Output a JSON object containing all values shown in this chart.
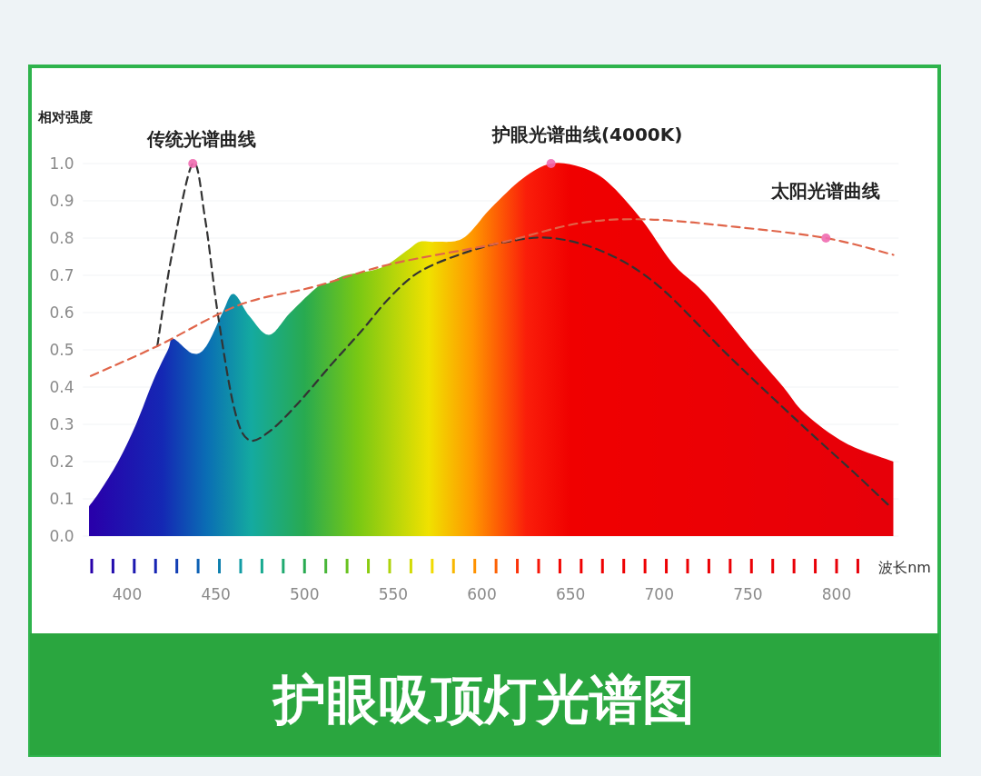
{
  "chart_data": {
    "type": "line",
    "title": "护眼吸顶灯光谱图",
    "ylabel": "相对强度",
    "xlabel": "波长nm",
    "xlim": [
      375,
      835
    ],
    "ylim": [
      0,
      1
    ],
    "xticks": [
      400,
      450,
      500,
      550,
      600,
      650,
      700,
      750,
      800
    ],
    "yticks": [
      {
        "value": 0,
        "label": "0.0"
      },
      {
        "value": 0.1,
        "label": "0.1"
      },
      {
        "value": 0.2,
        "label": "0.2"
      },
      {
        "value": 0.3,
        "label": "0.3"
      },
      {
        "value": 0.4,
        "label": "0.4"
      },
      {
        "value": 0.5,
        "label": "0.5"
      },
      {
        "value": 0.6,
        "label": "0.6"
      },
      {
        "value": 0.7,
        "label": "0.7"
      },
      {
        "value": 0.8,
        "label": "0.8"
      },
      {
        "value": 0.9,
        "label": "0.9"
      },
      {
        "value": 1,
        "label": "1.0"
      }
    ],
    "grid": "y",
    "series": [
      {
        "type": "area",
        "x": [
          378.5,
          384.6,
          394.9,
          405,
          415,
          423,
          426,
          437,
          444.6,
          453.8,
          460,
          469,
          480,
          492,
          507.6,
          514,
          523,
          543,
          558.8,
          565,
          574,
          589.5,
          605,
          623,
          639,
          656,
          671,
          690,
          708,
          726,
          752,
          770,
          782,
          805,
          832
        ],
        "values": [
          0.08,
          0.12,
          0.2,
          0.3,
          0.42,
          0.5,
          0.53,
          0.49,
          0.51,
          0.6,
          0.65,
          0.59,
          0.54,
          0.6,
          0.67,
          0.68,
          0.7,
          0.72,
          0.77,
          0.79,
          0.79,
          0.8,
          0.88,
          0.96,
          1.0,
          0.99,
          0.95,
          0.85,
          0.73,
          0.65,
          0.5,
          0.4,
          0.33,
          0.25,
          0.2
        ]
      },
      {
        "type": "line",
        "color": "#333333",
        "line_style": "dashed",
        "x": [
          417,
          425,
          437,
          444,
          451,
          460,
          468,
          480,
          497,
          515,
          532,
          548,
          565,
          590,
          614,
          640,
          670,
          700,
          740,
          780,
          810,
          830
        ],
        "values": [
          0.51,
          0.75,
          1.0,
          0.85,
          0.6,
          0.35,
          0.26,
          0.28,
          0.36,
          0.46,
          0.55,
          0.64,
          0.71,
          0.76,
          0.79,
          0.8,
          0.76,
          0.67,
          0.48,
          0.3,
          0.17,
          0.08
        ]
      },
      {
        "color": "#e0654a",
        "line_style": "dashed",
        "x": [
          379.5,
          417,
          463,
          506,
          548.5,
          608,
          655,
          694,
          743,
          794,
          832
        ],
        "values": [
          0.43,
          0.51,
          0.62,
          0.67,
          0.73,
          0.785,
          0.84,
          0.85,
          0.83,
          0.8,
          0.755
        ]
      }
    ],
    "annotations": [
      {
        "text": "传统光谱曲线",
        "x": 437,
        "y": 1.0
      },
      {
        "text": "护眼光谱曲线(4000K)",
        "x": 639,
        "y": 1.0
      },
      {
        "text": "太阳光谱曲线",
        "x": 794,
        "y": 0.8
      }
    ]
  }
}
